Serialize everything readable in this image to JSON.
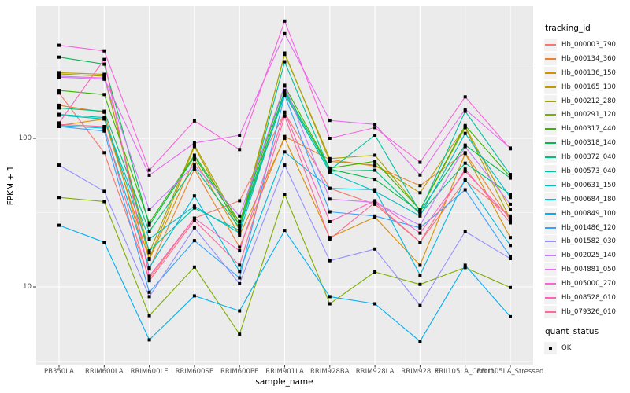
{
  "figure": {
    "background": "#FFFFFF",
    "panel_background": "#EBEBEB",
    "grid_color": "#FFFFFF",
    "tick_color": "#333333",
    "axis_text_color": "#4D4D4D",
    "point_color": "#000000"
  },
  "chart_data": {
    "type": "line",
    "x_type": "categorical",
    "y_scale": "log10",
    "xlabel": "sample_name",
    "ylabel": "FPKM + 1",
    "grid": true,
    "legend_position": "right",
    "legend_title": "tracking_id",
    "categories": [
      "PB350LA",
      "RRIM600LA",
      "RRIM600LE",
      "RRIM600SE",
      "RRIM600PE",
      "RRIM901LA",
      "RRIM928BA",
      "RRIM928LA",
      "RRIM928LE",
      "RRII105LA_Control",
      "RRII105LA_Stressed"
    ],
    "y_tick_values": [
      100,
      10
    ],
    "y_tick_labels": [
      "100",
      "10"
    ],
    "y_minor_ticks": [
      316.2,
      31.62,
      3.162
    ],
    "ylim": [
      3.1,
      760
    ],
    "series": [
      {
        "name": "Hb_000003_790",
        "color": "#F8766D",
        "values": [
          202,
          80,
          11.4,
          29,
          38,
          148,
          46,
          36,
          20,
          52,
          30
        ]
      },
      {
        "name": "Hb_000134_360",
        "color": "#EA8331",
        "values": [
          167,
          150,
          13.2,
          62,
          18.5,
          103,
          72,
          65,
          48,
          80,
          28
        ]
      },
      {
        "name": "Hb_000136_150",
        "color": "#D89000",
        "values": [
          122,
          135,
          15.3,
          72,
          22.3,
          100,
          21.5,
          29.5,
          14,
          79,
          21.5
        ]
      },
      {
        "name": "Hb_000165_130",
        "color": "#C09B00",
        "values": [
          277,
          270,
          15.5,
          88,
          24,
          375,
          70,
          66,
          43,
          120,
          33
        ]
      },
      {
        "name": "Hb_000212_280",
        "color": "#A3A500",
        "values": [
          272,
          262,
          17,
          90,
          26,
          368,
          73,
          77,
          33,
          118,
          28.5
        ]
      },
      {
        "name": "Hb_000291_120",
        "color": "#7CAE00",
        "values": [
          40,
          37.5,
          6.4,
          13.6,
          4.8,
          42,
          7.7,
          12.6,
          10.4,
          13.5,
          9.9
        ]
      },
      {
        "name": "Hb_000317_440",
        "color": "#39B600",
        "values": [
          210,
          197,
          27,
          77,
          27.5,
          225,
          63,
          70,
          33,
          122,
          55
        ]
      },
      {
        "name": "Hb_000318_140",
        "color": "#00BB4E",
        "values": [
          352,
          316,
          26,
          75,
          26,
          210,
          62,
          53,
          32,
          90,
          54
        ]
      },
      {
        "name": "Hb_000372_040",
        "color": "#00BF7D",
        "values": [
          160,
          152,
          23.6,
          64,
          25,
          198,
          60,
          61,
          31,
          68,
          42
        ]
      },
      {
        "name": "Hb_000573_040",
        "color": "#00C1A3",
        "values": [
          145,
          138,
          17.5,
          34,
          24,
          328,
          61,
          105,
          32,
          152,
          57
        ]
      },
      {
        "name": "Hb_000631_150",
        "color": "#00BFC4",
        "values": [
          143,
          135,
          21,
          35,
          23,
          205,
          59,
          44,
          30,
          108,
          40
        ]
      },
      {
        "name": "Hb_000684_180",
        "color": "#00BAE0",
        "values": [
          122,
          117,
          13.5,
          41,
          12.7,
          81,
          46,
          45,
          12,
          53,
          19
        ]
      },
      {
        "name": "Hb_000849_100",
        "color": "#00B0F6",
        "values": [
          26,
          20,
          4.4,
          8.7,
          6.9,
          24,
          8.6,
          7.7,
          4.3,
          14,
          6.3
        ]
      },
      {
        "name": "Hb_001486_120",
        "color": "#35A2FF",
        "values": [
          120,
          112,
          9.2,
          20.5,
          11.5,
          195,
          32,
          30,
          25,
          45,
          16
        ]
      },
      {
        "name": "Hb_001582_030",
        "color": "#9590FF",
        "values": [
          66,
          44,
          8.6,
          25,
          10.5,
          66,
          15,
          18,
          7.5,
          23.6,
          15.5
        ]
      },
      {
        "name": "Hb_002025_140",
        "color": "#C77CFF",
        "values": [
          258,
          250,
          33,
          66,
          30,
          228,
          39,
          37,
          26,
          88,
          36
        ]
      },
      {
        "name": "Hb_004881_050",
        "color": "#E76BF3",
        "values": [
          262,
          255,
          56.5,
          93,
          105,
          507,
          132,
          124,
          56.6,
          157,
          86
        ]
      },
      {
        "name": "Hb_005000_270",
        "color": "#FA62DB",
        "values": [
          423,
          388,
          61,
          131,
          84,
          616,
          100,
          118,
          69,
          190,
          85
        ]
      },
      {
        "name": "Hb_008528_010",
        "color": "#FF62BC",
        "values": [
          127,
          340,
          11.8,
          29,
          17.5,
          150,
          27.5,
          38,
          23,
          60,
          29
        ]
      },
      {
        "name": "Hb_079326_010",
        "color": "#FF6A98",
        "values": [
          124,
          120,
          11,
          28,
          14,
          141,
          21,
          37,
          20,
          62,
          27
        ]
      }
    ],
    "quant_status": {
      "title": "quant_status",
      "items": [
        {
          "label": "OK",
          "shape": "square",
          "color": "#000000"
        }
      ]
    }
  }
}
